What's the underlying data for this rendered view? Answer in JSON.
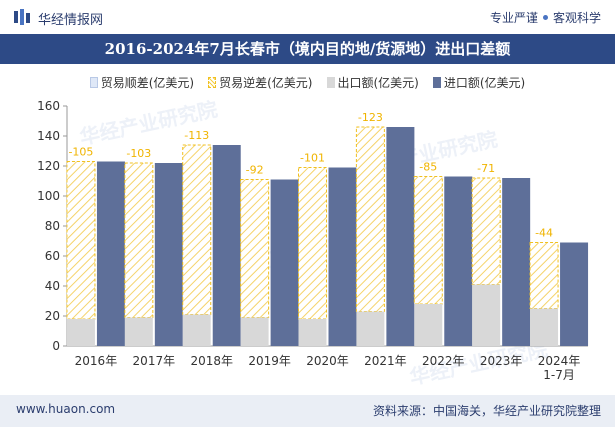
{
  "header": {
    "brand": "华经情报网",
    "tagline_left": "专业严谨",
    "tagline_right": "客观科学",
    "title": "2016-2024年7月长春市（境内目的地/货源地）进出口差额"
  },
  "footer": {
    "website": "www.huaon.com",
    "source": "资料来源：中国海关，华经产业研究院整理"
  },
  "watermark": "华经产业研究院",
  "colors": {
    "import": "#5e6f99",
    "export": "#d8d8d8",
    "deficit_stroke": "#f0c020",
    "deficit_label": "#f0b400",
    "title_band": "#2d4a86"
  },
  "chart_data": {
    "type": "bar",
    "categories": [
      "2016年",
      "2017年",
      "2018年",
      "2019年",
      "2020年",
      "2021年",
      "2022年",
      "2023年",
      "2024年\n1-7月"
    ],
    "series": [
      {
        "name": "贸易顺差(亿美元)",
        "values": [
          0,
          0,
          0,
          0,
          0,
          0,
          0,
          0,
          0
        ]
      },
      {
        "name": "贸易逆差(亿美元)",
        "values": [
          -105,
          -103,
          -113,
          -92,
          -101,
          -123,
          -85,
          -71,
          -44
        ]
      },
      {
        "name": "出口额(亿美元)",
        "values": [
          18,
          19,
          21,
          19,
          18,
          23,
          28,
          41,
          25
        ]
      },
      {
        "name": "进口额(亿美元)",
        "values": [
          123,
          122,
          134,
          111,
          119,
          146,
          113,
          112,
          69
        ]
      }
    ],
    "data_labels": [
      "-105",
      "-103",
      "-113",
      "-92",
      "-101",
      "-123",
      "-85",
      "-71",
      "-44"
    ],
    "yticks": [
      "0",
      "20",
      "40",
      "60",
      "80",
      "100",
      "120",
      "140",
      "160"
    ],
    "ylim": [
      0,
      160
    ],
    "xlabel": "",
    "ylabel": "",
    "legend_position": "top",
    "grid": false
  }
}
